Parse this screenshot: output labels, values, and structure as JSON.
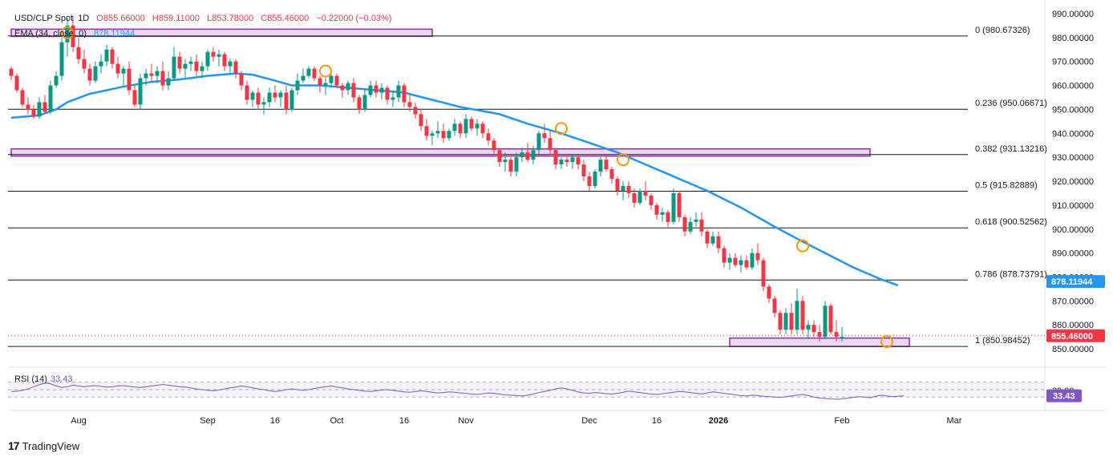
{
  "header": {
    "symbol": "USD/CLP Spot",
    "interval": "1D",
    "open": "O855.66000",
    "high": "H859.11000",
    "low": "L853.78000",
    "close": "C855.46000",
    "change": "−0.22000 (−0.03%)"
  },
  "ema_legend": {
    "label": "EMA (34, close, 0)",
    "value": "878.11944"
  },
  "rsi_legend": {
    "label": "RSI (14)",
    "value": "33.43"
  },
  "brand": {
    "logo": "17",
    "name": "TradingView"
  },
  "colors": {
    "up": "#089981",
    "down": "#f23645",
    "ema": "#2196f3",
    "zone": "#9c27b0",
    "rsi": "#7e57c2",
    "fib_line": "#131722",
    "marker": "#ff9800"
  },
  "chart_data": {
    "type": "candlestick",
    "symbol": "USD/CLP Spot",
    "timeframe": "1D",
    "price_axis": {
      "ticks": [
        "990.00000",
        "980.00000",
        "970.00000",
        "960.00000",
        "950.00000",
        "940.00000",
        "930.00000",
        "920.00000",
        "910.00000",
        "900.00000",
        "890.00000",
        "880.00000",
        "870.00000",
        "860.00000",
        "850.00000"
      ],
      "range": [
        843,
        993
      ]
    },
    "time_axis": {
      "labels": [
        {
          "t": 12,
          "text": "Aug",
          "bold": false
        },
        {
          "t": 35,
          "text": "Sep",
          "bold": false
        },
        {
          "t": 47,
          "text": "16",
          "bold": false
        },
        {
          "t": 58,
          "text": "Oct",
          "bold": false
        },
        {
          "t": 70,
          "text": "16",
          "bold": false
        },
        {
          "t": 81,
          "text": "Nov",
          "bold": false
        },
        {
          "t": 103,
          "text": "Dec",
          "bold": false
        },
        {
          "t": 115,
          "text": "16",
          "bold": false
        },
        {
          "t": 126,
          "text": "2026",
          "bold": true
        },
        {
          "t": 148,
          "text": "Feb",
          "bold": false
        },
        {
          "t": 168,
          "text": "Mar",
          "bold": false
        }
      ]
    },
    "fibonacci": [
      {
        "level": "0",
        "value": 980.67326,
        "label": "0 (980.67326)"
      },
      {
        "level": "0.236",
        "value": 950.06671,
        "label": "0.236 (950.06671)"
      },
      {
        "level": "0.382",
        "value": 931.13216,
        "label": "0.382 (931.13216)"
      },
      {
        "level": "0.5",
        "value": 915.82889,
        "label": "0.5 (915.82889)"
      },
      {
        "level": "0.618",
        "value": 900.52562,
        "label": "0.618 (900.52562)"
      },
      {
        "level": "0.786",
        "value": 878.73791,
        "label": "0.786 (878.73791)"
      },
      {
        "level": "1",
        "value": 850.98452,
        "label": "1 (850.98452)"
      }
    ],
    "zones": [
      {
        "t0": 0,
        "t1": 75,
        "low": 980.5,
        "high": 983.5
      },
      {
        "t0": 0,
        "t1": 153,
        "low": 930.5,
        "high": 933.5
      },
      {
        "t0": 128,
        "t1": 160,
        "low": 851.0,
        "high": 854.5
      }
    ],
    "markers": [
      {
        "t": 10,
        "price": 982
      },
      {
        "t": 56,
        "price": 966
      },
      {
        "t": 98,
        "price": 942
      },
      {
        "t": 109,
        "price": 929
      },
      {
        "t": 141,
        "price": 893
      },
      {
        "t": 156,
        "price": 853
      }
    ],
    "ema": {
      "name": "EMA (34, close, 0)",
      "last": 878.11944,
      "points": [
        [
          0,
          946.5
        ],
        [
          5,
          947.5
        ],
        [
          8,
          950
        ],
        [
          10,
          953
        ],
        [
          14,
          956.5
        ],
        [
          20,
          959.5
        ],
        [
          25,
          961.5
        ],
        [
          30,
          962.5
        ],
        [
          35,
          964
        ],
        [
          40,
          965
        ],
        [
          43,
          964.5
        ],
        [
          47,
          962
        ],
        [
          50,
          960
        ],
        [
          55,
          960
        ],
        [
          60,
          959
        ],
        [
          65,
          958
        ],
        [
          70,
          957
        ],
        [
          75,
          954
        ],
        [
          80,
          951
        ],
        [
          87,
          948
        ],
        [
          92,
          944
        ],
        [
          98,
          940
        ],
        [
          103,
          936
        ],
        [
          108,
          932
        ],
        [
          112,
          928
        ],
        [
          118,
          922
        ],
        [
          124,
          916
        ],
        [
          130,
          909
        ],
        [
          136,
          901
        ],
        [
          140,
          896
        ],
        [
          145,
          890
        ],
        [
          150,
          884
        ],
        [
          155,
          879
        ],
        [
          158,
          876.5
        ]
      ]
    },
    "last_price": {
      "value": 855.46,
      "label": "855.46000"
    },
    "ema_badge": {
      "value": 878.11944,
      "label": "878.11944"
    },
    "rsi": {
      "name": "RSI (14)",
      "value": 33.43,
      "badge": "33.43",
      "band_top": 70,
      "band_bottom": 30,
      "level_label": "30.00",
      "values": [
        45,
        46,
        48,
        52,
        58,
        63,
        68,
        66,
        60,
        56,
        58,
        62,
        60,
        58,
        60,
        61,
        59,
        57,
        58,
        60,
        61,
        59,
        57,
        56,
        58,
        60,
        62,
        64,
        62,
        60,
        58,
        57,
        55,
        52,
        50,
        48,
        47,
        49,
        52,
        55,
        57,
        60,
        58,
        55,
        52,
        50,
        47,
        45,
        47,
        50,
        52,
        50,
        48,
        50,
        53,
        56,
        58,
        60,
        57,
        55,
        52,
        50,
        48,
        46,
        45,
        47,
        49,
        50,
        48,
        46,
        44,
        43,
        45,
        47,
        45,
        43,
        41,
        42,
        44,
        43,
        41,
        40,
        38,
        37,
        39,
        41,
        40,
        38,
        36,
        35,
        34,
        33,
        35,
        38,
        42,
        45,
        48,
        52,
        55,
        52,
        48,
        44,
        41,
        40,
        42,
        41,
        39,
        38,
        40,
        43,
        46,
        44,
        42,
        40,
        38,
        37,
        39,
        41,
        43,
        45,
        44,
        42,
        40,
        38,
        41,
        44,
        42,
        40,
        38,
        36,
        34,
        33,
        35,
        34,
        32,
        31,
        30,
        29,
        31,
        33,
        35,
        37,
        34,
        30,
        27,
        26,
        25,
        24,
        25,
        27,
        29,
        31,
        30,
        28,
        32,
        35,
        33,
        31,
        32,
        33.4
      ]
    },
    "candles": [
      [
        967,
        968,
        962,
        964
      ],
      [
        964,
        965,
        957,
        958
      ],
      [
        958,
        959,
        951,
        952
      ],
      [
        952,
        955,
        948,
        950
      ],
      [
        950,
        952,
        946,
        947
      ],
      [
        947,
        955,
        946,
        953
      ],
      [
        953,
        956,
        948,
        949
      ],
      [
        949,
        962,
        948,
        960
      ],
      [
        960,
        966,
        959,
        964
      ],
      [
        964,
        980,
        962,
        978
      ],
      [
        978,
        988,
        972,
        985
      ],
      [
        985,
        989,
        974,
        976
      ],
      [
        976,
        980,
        969,
        971
      ],
      [
        971,
        975,
        965,
        967
      ],
      [
        967,
        969,
        960,
        962
      ],
      [
        962,
        970,
        961,
        968
      ],
      [
        968,
        973,
        965,
        970
      ],
      [
        970,
        977,
        968,
        975
      ],
      [
        975,
        976,
        967,
        969
      ],
      [
        969,
        972,
        963,
        965
      ],
      [
        965,
        968,
        960,
        967
      ],
      [
        967,
        970,
        956,
        958
      ],
      [
        958,
        960,
        951,
        952
      ],
      [
        952,
        965,
        950,
        963
      ],
      [
        963,
        967,
        960,
        965
      ],
      [
        965,
        969,
        962,
        964
      ],
      [
        964,
        968,
        961,
        966
      ],
      [
        966,
        970,
        958,
        960
      ],
      [
        960,
        966,
        958,
        963
      ],
      [
        963,
        976,
        962,
        972
      ],
      [
        972,
        974,
        965,
        967
      ],
      [
        967,
        971,
        963,
        969
      ],
      [
        969,
        972,
        966,
        970
      ],
      [
        970,
        973,
        964,
        966
      ],
      [
        966,
        970,
        963,
        968
      ],
      [
        968,
        975,
        966,
        974
      ],
      [
        974,
        976,
        970,
        972
      ],
      [
        972,
        975,
        968,
        973
      ],
      [
        973,
        974,
        966,
        968
      ],
      [
        968,
        971,
        965,
        970
      ],
      [
        970,
        971,
        963,
        965
      ],
      [
        965,
        966,
        958,
        960
      ],
      [
        960,
        962,
        952,
        954
      ],
      [
        954,
        958,
        951,
        957
      ],
      [
        957,
        959,
        950,
        952
      ],
      [
        952,
        955,
        948,
        953
      ],
      [
        953,
        959,
        951,
        957
      ],
      [
        957,
        960,
        953,
        955
      ],
      [
        955,
        958,
        951,
        957
      ],
      [
        957,
        960,
        948,
        950
      ],
      [
        950,
        959,
        949,
        958
      ],
      [
        958,
        965,
        956,
        962
      ],
      [
        962,
        967,
        961,
        964
      ],
      [
        964,
        968,
        963,
        967
      ],
      [
        967,
        968,
        962,
        963
      ],
      [
        963,
        964,
        957,
        960
      ],
      [
        960,
        963,
        956,
        961
      ],
      [
        961,
        966,
        959,
        964
      ],
      [
        964,
        965,
        959,
        960
      ],
      [
        960,
        961,
        955,
        958
      ],
      [
        958,
        962,
        956,
        961
      ],
      [
        961,
        963,
        953,
        955
      ],
      [
        955,
        956,
        948,
        950
      ],
      [
        950,
        958,
        949,
        956
      ],
      [
        956,
        962,
        955,
        960
      ],
      [
        960,
        962,
        955,
        957
      ],
      [
        957,
        961,
        954,
        959
      ],
      [
        959,
        960,
        952,
        954
      ],
      [
        954,
        958,
        951,
        955
      ],
      [
        955,
        962,
        953,
        960
      ],
      [
        960,
        961,
        951,
        953
      ],
      [
        953,
        956,
        949,
        951
      ],
      [
        951,
        953,
        946,
        948
      ],
      [
        948,
        950,
        941,
        943
      ],
      [
        943,
        946,
        937,
        939
      ],
      [
        939,
        941,
        935,
        940
      ],
      [
        940,
        945,
        938,
        941
      ],
      [
        941,
        944,
        936,
        938
      ],
      [
        938,
        942,
        937,
        941
      ],
      [
        941,
        946,
        939,
        944
      ],
      [
        944,
        945,
        938,
        940
      ],
      [
        940,
        948,
        938,
        946
      ],
      [
        946,
        947,
        941,
        942
      ],
      [
        942,
        946,
        939,
        944
      ],
      [
        944,
        945,
        938,
        940
      ],
      [
        940,
        942,
        935,
        937
      ],
      [
        937,
        938,
        931,
        933
      ],
      [
        933,
        934,
        926,
        928
      ],
      [
        928,
        932,
        924,
        929
      ],
      [
        929,
        930,
        922,
        924
      ],
      [
        924,
        932,
        922,
        930
      ],
      [
        930,
        934,
        928,
        932
      ],
      [
        932,
        936,
        928,
        929
      ],
      [
        929,
        935,
        927,
        933
      ],
      [
        933,
        941,
        931,
        940
      ],
      [
        940,
        944,
        936,
        938
      ],
      [
        938,
        941,
        931,
        933
      ],
      [
        933,
        934,
        925,
        927
      ],
      [
        927,
        930,
        925,
        929
      ],
      [
        929,
        930,
        926,
        928
      ],
      [
        928,
        931,
        925,
        930
      ],
      [
        930,
        931,
        925,
        927
      ],
      [
        927,
        929,
        920,
        922
      ],
      [
        922,
        924,
        916,
        918
      ],
      [
        918,
        925,
        917,
        924
      ],
      [
        924,
        930,
        922,
        929
      ],
      [
        929,
        931,
        924,
        925
      ],
      [
        925,
        926,
        919,
        921
      ],
      [
        921,
        922,
        914,
        916
      ],
      [
        916,
        920,
        912,
        918
      ],
      [
        918,
        920,
        913,
        915
      ],
      [
        915,
        917,
        909,
        911
      ],
      [
        911,
        917,
        910,
        916
      ],
      [
        916,
        920,
        912,
        914
      ],
      [
        914,
        915,
        908,
        910
      ],
      [
        910,
        911,
        904,
        906
      ],
      [
        906,
        909,
        903,
        907
      ],
      [
        907,
        908,
        901,
        903
      ],
      [
        903,
        917,
        902,
        915
      ],
      [
        915,
        916,
        903,
        905
      ],
      [
        905,
        906,
        897,
        899
      ],
      [
        899,
        905,
        898,
        903
      ],
      [
        903,
        907,
        901,
        904
      ],
      [
        904,
        907,
        897,
        899
      ],
      [
        899,
        900,
        892,
        894
      ],
      [
        894,
        899,
        893,
        897
      ],
      [
        897,
        899,
        890,
        892
      ],
      [
        892,
        893,
        884,
        886
      ],
      [
        886,
        890,
        883,
        888
      ],
      [
        888,
        890,
        884,
        885
      ],
      [
        885,
        889,
        882,
        887
      ],
      [
        887,
        889,
        883,
        884
      ],
      [
        884,
        892,
        883,
        890
      ],
      [
        890,
        894,
        885,
        887
      ],
      [
        887,
        888,
        874,
        876
      ],
      [
        876,
        877,
        869,
        871
      ],
      [
        871,
        872,
        863,
        865
      ],
      [
        865,
        866,
        856,
        858
      ],
      [
        858,
        867,
        856,
        865
      ],
      [
        865,
        869,
        856,
        858
      ],
      [
        858,
        875,
        856,
        870
      ],
      [
        870,
        872,
        856,
        858
      ],
      [
        858,
        862,
        854,
        860
      ],
      [
        860,
        862,
        855,
        857
      ],
      [
        857,
        860,
        853,
        855
      ],
      [
        855,
        870,
        854,
        868
      ],
      [
        868,
        869,
        856,
        857
      ],
      [
        857,
        862,
        853,
        855
      ],
      [
        855,
        859,
        853,
        855
      ]
    ]
  }
}
